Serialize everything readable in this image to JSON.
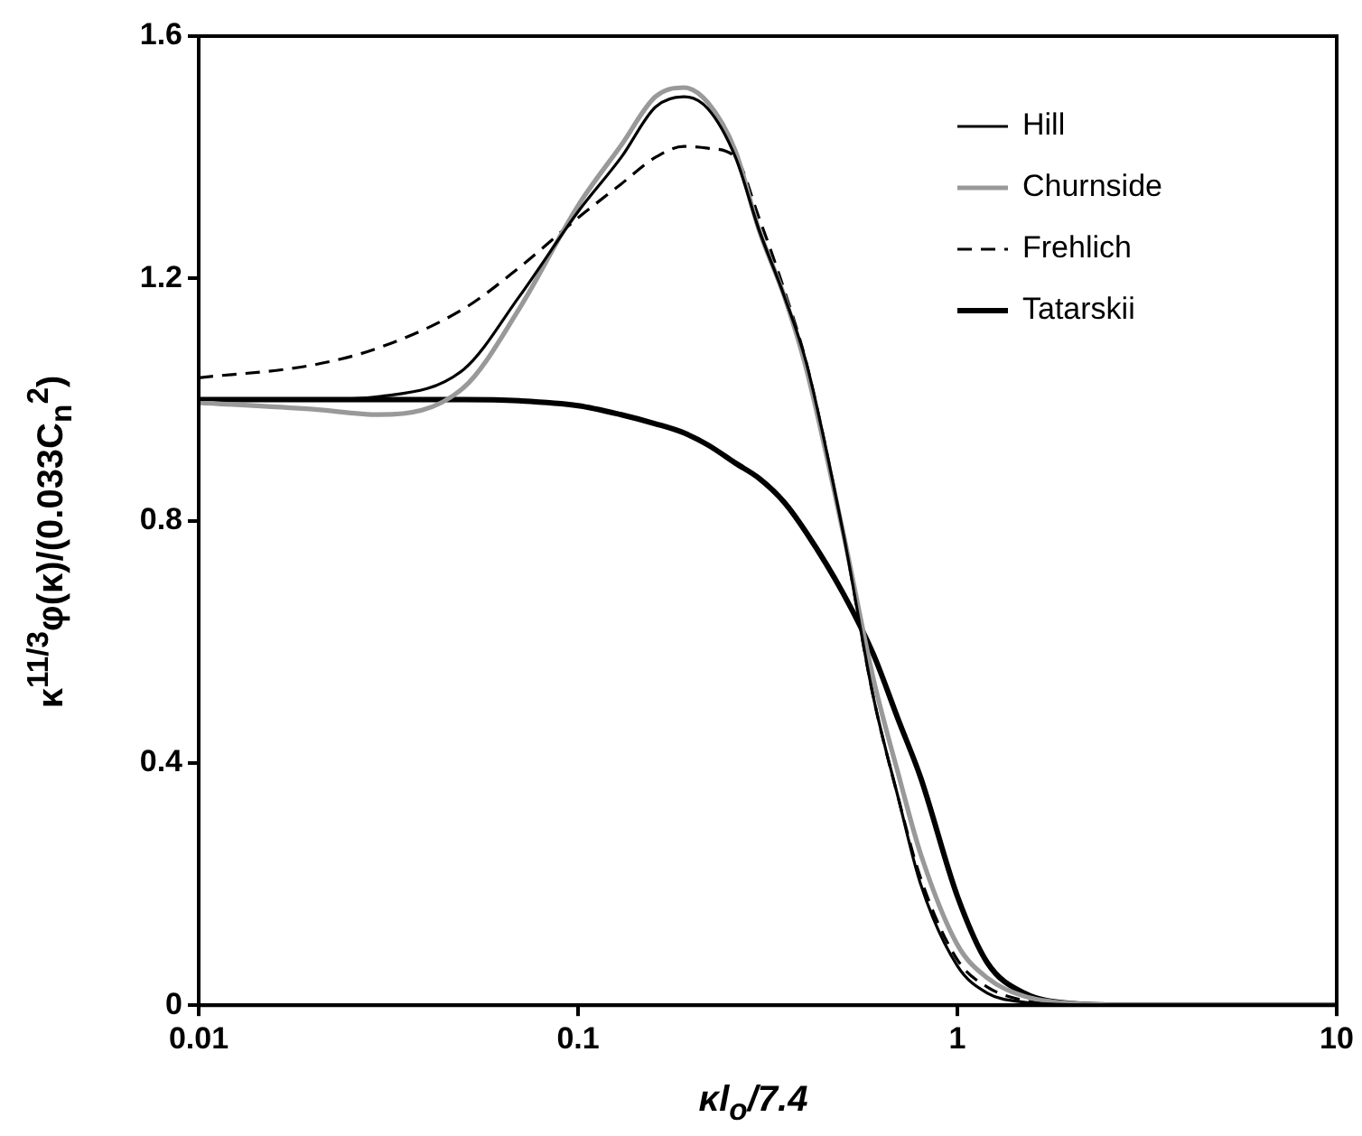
{
  "chart_data": {
    "type": "line",
    "xlabel": "κl$_{o}$/7.4",
    "ylabel": "κ$^{11/3}$φ(κ)/(0.033C$_{n}$$^{2}$)",
    "log": "x",
    "grid": false,
    "legend": "top right",
    "marker": "none",
    "x": [
      0.01,
      0.02,
      0.03,
      0.05,
      0.07,
      0.1,
      0.13,
      0.16,
      0.19,
      0.22,
      0.26,
      0.3,
      0.35,
      0.4,
      0.5,
      0.6,
      0.7,
      0.8,
      1,
      1.2,
      1.5,
      2,
      3,
      5,
      10
    ],
    "xlim": [
      0.01,
      10
    ],
    "xticks": [
      0.01,
      0.1,
      1,
      10
    ],
    "ylim": [
      0,
      1.6
    ],
    "yticks": [
      0,
      0.4,
      0.8,
      1.2,
      1.6
    ],
    "series": [
      {
        "name": "Hill",
        "color": "#000000",
        "line_style": "solid",
        "values": [
          1.0,
          1.0,
          1.005,
          1.05,
          1.17,
          1.31,
          1.4,
          1.483,
          1.5,
          1.48,
          1.4,
          1.28,
          1.17,
          1.06,
          0.78,
          0.51,
          0.34,
          0.2,
          0.065,
          0.02,
          0.005,
          0.001,
          0,
          0,
          0
        ]
      },
      {
        "name": "Churnside",
        "color": "#999999",
        "line_style": "solid",
        "values": [
          0.995,
          0.984,
          0.975,
          1.02,
          1.15,
          1.32,
          1.42,
          1.5,
          1.515,
          1.49,
          1.41,
          1.28,
          1.17,
          1.05,
          0.78,
          0.54,
          0.38,
          0.25,
          0.1,
          0.045,
          0.015,
          0.003,
          0,
          0,
          0
        ]
      },
      {
        "name": "Frehlich",
        "color": "#000000",
        "line_style": "dashed",
        "values": [
          1.036,
          1.057,
          1.086,
          1.15,
          1.218,
          1.3,
          1.356,
          1.4,
          1.418,
          1.415,
          1.4,
          1.3,
          1.18,
          1.06,
          0.78,
          0.51,
          0.34,
          0.21,
          0.075,
          0.03,
          0.008,
          0.001,
          0,
          0,
          0
        ]
      },
      {
        "name": "Tatarskii",
        "color": "#000000",
        "line_style": "solid",
        "values": [
          1.0,
          1.0,
          1.0,
          1.0,
          0.998,
          0.99,
          0.975,
          0.96,
          0.945,
          0.925,
          0.895,
          0.87,
          0.83,
          0.78,
          0.68,
          0.58,
          0.47,
          0.376,
          0.18,
          0.07,
          0.02,
          0.003,
          0,
          0,
          0
        ]
      }
    ]
  }
}
